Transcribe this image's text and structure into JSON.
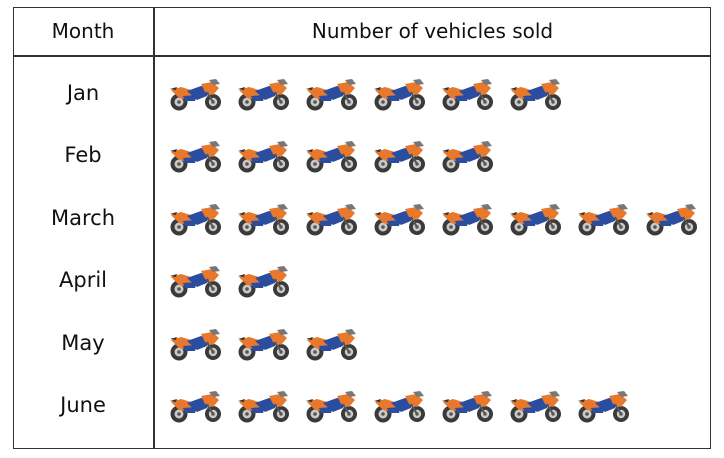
{
  "chart_data": {
    "type": "table",
    "headers": {
      "month": "Month",
      "count": "Number of vehicles sold"
    },
    "icon": "motorcycle-icon",
    "icon_colors": {
      "body": "#e8782c",
      "accent": "#2a4da0",
      "wheel": "#3a3a3a",
      "rim": "#c9c9c9"
    },
    "rows": [
      {
        "month": "Jan",
        "value": 6
      },
      {
        "month": "Feb",
        "value": 5
      },
      {
        "month": "March",
        "value": 8
      },
      {
        "month": "April",
        "value": 2
      },
      {
        "month": "May",
        "value": 3
      },
      {
        "month": "June",
        "value": 7
      }
    ]
  }
}
